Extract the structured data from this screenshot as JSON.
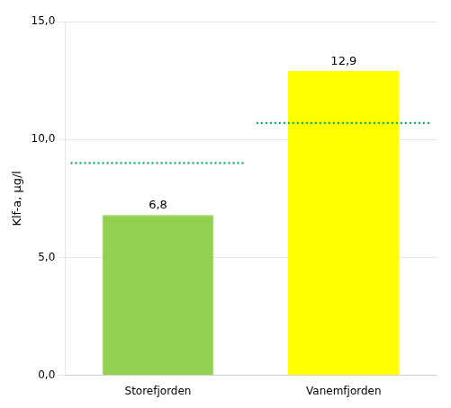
{
  "chart_data": {
    "type": "bar",
    "categories": [
      "Storefjorden",
      "Vanemfjorden"
    ],
    "values": [
      6.8,
      12.9
    ],
    "value_labels": [
      "6,8",
      "12,9"
    ],
    "data_labels": true,
    "colors": [
      "#92d050",
      "#ffff00"
    ],
    "ylabel": "Klf-a, µg/l",
    "ylim": [
      0,
      15
    ],
    "yticks": [
      {
        "value": 0,
        "label": "0,0"
      },
      {
        "value": 5,
        "label": "5,0"
      },
      {
        "value": 10,
        "label": "10,0"
      },
      {
        "value": 15,
        "label": "15,0"
      }
    ],
    "grid": "y",
    "legend": false,
    "thresholds": {
      "values": [
        9.0,
        10.7
      ],
      "color": "#00b050",
      "line_style": "dotted"
    }
  }
}
